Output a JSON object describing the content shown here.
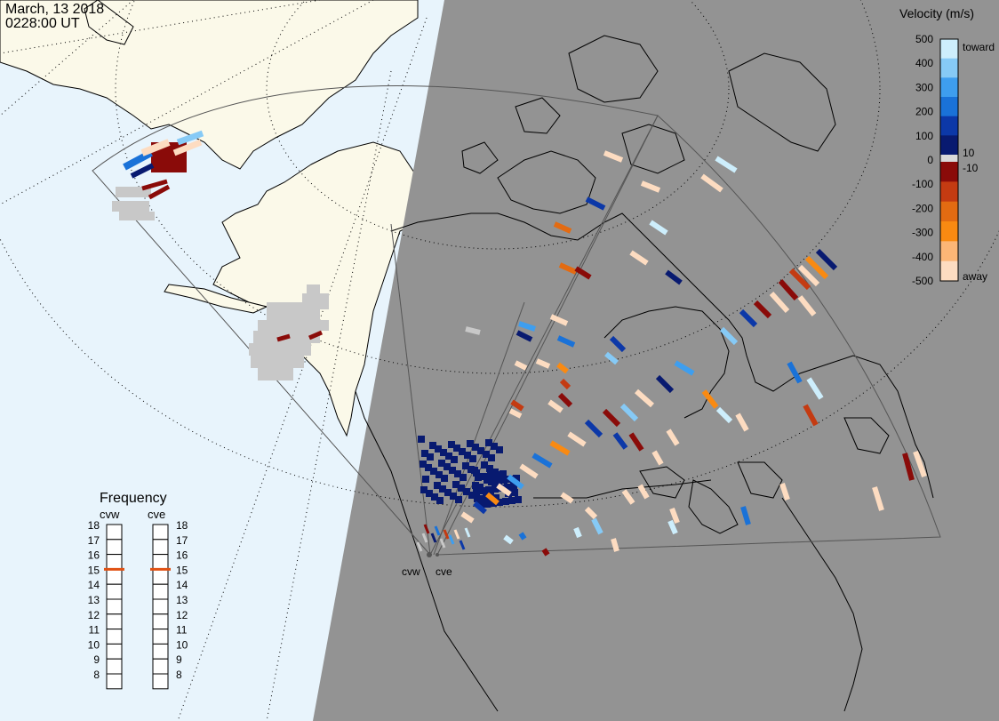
{
  "header": {
    "date": "March, 13 2018",
    "time": "0228:00 UT"
  },
  "colors": {
    "ocean_day": "#e8f4fc",
    "land_day": "#fbf9e9",
    "night": "#939393",
    "ground_scatter": "#c8c8c8"
  },
  "legend": {
    "title": "Velocity (m/s)",
    "toward_label": "toward",
    "away_label": "away",
    "ticks": [
      "500",
      "400",
      "300",
      "200",
      "100",
      "0",
      "-100",
      "-200",
      "-300",
      "-400",
      "-500"
    ],
    "inner_ticks": [
      "10",
      "-10"
    ],
    "colors": [
      "#fddcc1",
      "#fcb676",
      "#f98a12",
      "#e36b12",
      "#c43b12",
      "#8a0b09",
      "#d9d9d9",
      "#081a70",
      "#0c38a8",
      "#1a72d8",
      "#3e9eef",
      "#86caf6",
      "#cdeefc"
    ]
  },
  "frequency": {
    "title": "Frequency",
    "radars": [
      {
        "name": "cvw",
        "value": 15
      },
      {
        "name": "cve",
        "value": 15
      }
    ],
    "scale": [
      "18",
      "17",
      "16",
      "15",
      "14",
      "13",
      "12",
      "11",
      "10",
      "9",
      "8"
    ],
    "marker_color": "#e05012"
  },
  "radar_sites": [
    {
      "name": "cvw"
    },
    {
      "name": "cve"
    }
  ]
}
